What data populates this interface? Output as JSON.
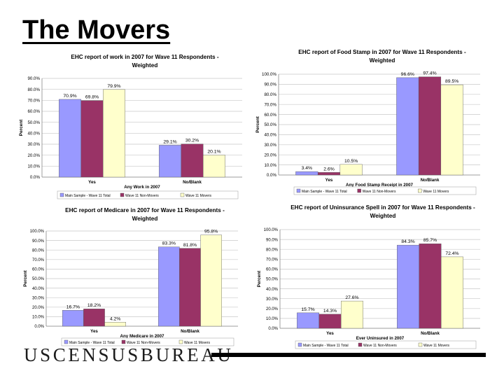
{
  "slide": {
    "title": "The Movers"
  },
  "footer": {
    "logo_text": "USCENSUSBUREAU"
  },
  "colors": {
    "total": "#9999ff",
    "non_movers": "#993366",
    "movers": "#ffffcc"
  },
  "chart_data": [
    {
      "type": "bar",
      "title": "EHC report of work in 2007 for Wave 11 Respondents - Weighted",
      "xlabel": "Any Work in 2007",
      "ylabel": "Percent",
      "categories": [
        "Yes",
        "No/Blank"
      ],
      "series": [
        {
          "name": "Main Sample - Wave 11 Total",
          "values": [
            70.9,
            29.1
          ],
          "labels": [
            "70.9%",
            "29.1%"
          ]
        },
        {
          "name": "Wave 11 Non-Movers",
          "values": [
            69.8,
            30.2
          ],
          "labels": [
            "69.8%",
            "30.2%"
          ]
        },
        {
          "name": "Wave 11 Movers",
          "values": [
            79.9,
            20.1
          ],
          "labels": [
            "79.9%",
            "20.1%"
          ]
        }
      ],
      "ylim": [
        0,
        90
      ],
      "yticks": [
        "0.0%",
        "10.0%",
        "20.0%",
        "30.0%",
        "40.0%",
        "50.0%",
        "60.0%",
        "70.0%",
        "80.0%",
        "90.0%"
      ],
      "grid": true,
      "legend": "bottom"
    },
    {
      "type": "bar",
      "title": "EHC report of Food Stamp in 2007 for Wave 11 Respondents - Weighted",
      "xlabel": "Any Food Stamp Receipt in 2007",
      "ylabel": "Percent",
      "categories": [
        "Yes",
        "No/Blank"
      ],
      "series": [
        {
          "name": "Main Sample - Wave 11 Total",
          "values": [
            3.4,
            96.6
          ],
          "labels": [
            "3.4%",
            "96.6%"
          ]
        },
        {
          "name": "Wave 11 Non-Movers",
          "values": [
            2.6,
            97.4
          ],
          "labels": [
            "2.6%",
            "97.4%"
          ]
        },
        {
          "name": "Wave 11 Movers",
          "values": [
            10.5,
            89.5
          ],
          "labels": [
            "10.5%",
            "89.5%"
          ]
        }
      ],
      "ylim": [
        0,
        100
      ],
      "yticks": [
        "0.0%",
        "10.0%",
        "20.0%",
        "30.0%",
        "40.0%",
        "50.0%",
        "60.0%",
        "70.0%",
        "80.0%",
        "90.0%",
        "100.0%"
      ],
      "grid": true,
      "legend": "bottom"
    },
    {
      "type": "bar",
      "title": "EHC report of Medicare in 2007 for Wave 11 Respondents - Weighted",
      "xlabel": "Any Medicare in 2007",
      "ylabel": "Percent",
      "categories": [
        "Yes",
        "No/Blank"
      ],
      "series": [
        {
          "name": "Main Sample - Wave 11 Total",
          "values": [
            16.7,
            83.3
          ],
          "labels": [
            "16.7%",
            "83.3%"
          ]
        },
        {
          "name": "Wave 11 Non-Movers",
          "values": [
            18.2,
            81.8
          ],
          "labels": [
            "18.2%",
            "81.8%"
          ]
        },
        {
          "name": "Wave 11 Movers",
          "values": [
            4.2,
            95.8
          ],
          "labels": [
            "4.2%",
            "95.8%"
          ]
        }
      ],
      "ylim": [
        0,
        100
      ],
      "yticks": [
        "0.0%",
        "10.0%",
        "20.0%",
        "30.0%",
        "40.0%",
        "50.0%",
        "60.0%",
        "70.0%",
        "80.0%",
        "90.0%",
        "100.0%"
      ],
      "grid": true,
      "legend": "bottom"
    },
    {
      "type": "bar",
      "title": "EHC report of Uninsurance Spell in 2007 for Wave 11 Respondents - Weighted",
      "xlabel": "Ever Uninsured in 2007",
      "ylabel": "Percent",
      "categories": [
        "Yes",
        "No/Blank"
      ],
      "series": [
        {
          "name": "Main Sample - Wave 11 Total",
          "values": [
            15.7,
            84.3
          ],
          "labels": [
            "15.7%",
            "84.3%"
          ]
        },
        {
          "name": "Wave 11 Non-Movers",
          "values": [
            14.3,
            85.7
          ],
          "labels": [
            "14.3%",
            "85.7%"
          ]
        },
        {
          "name": "Wave 11 Movers",
          "values": [
            27.6,
            72.4
          ],
          "labels": [
            "27.6%",
            "72.4%"
          ]
        }
      ],
      "ylim": [
        0,
        100
      ],
      "yticks": [
        "0.0%",
        "10.0%",
        "20.0%",
        "30.0%",
        "40.0%",
        "50.0%",
        "60.0%",
        "70.0%",
        "80.0%",
        "90.0%",
        "100.0%"
      ],
      "grid": true,
      "legend": "bottom"
    }
  ]
}
